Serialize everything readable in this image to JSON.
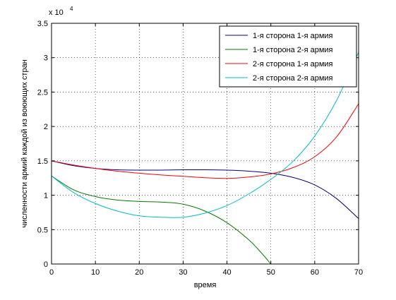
{
  "chart_data": {
    "type": "line",
    "title": "",
    "xlabel": "время",
    "ylabel": "численности армий каждой из воюющих стран",
    "y_multiplier_label": "x 10",
    "y_multiplier_exp": "4",
    "xlim": [
      0,
      70
    ],
    "ylim": [
      0,
      35000
    ],
    "x_ticks": [
      0,
      10,
      20,
      30,
      40,
      50,
      60,
      70
    ],
    "y_ticks": [
      0,
      5000,
      10000,
      15000,
      20000,
      25000,
      30000,
      35000
    ],
    "y_tick_labels": [
      "0",
      "0.5",
      "1",
      "1.5",
      "2",
      "2.5",
      "3",
      "3.5"
    ],
    "grid": true,
    "legend_position": "top-right",
    "series": [
      {
        "name": "1-я сторона 1-я армия",
        "color": "#00007f",
        "x": [
          0,
          5,
          10,
          15,
          20,
          25,
          30,
          35,
          40,
          45,
          50,
          55,
          60,
          65,
          70
        ],
        "y": [
          15000,
          14300,
          13900,
          13700,
          13650,
          13650,
          13700,
          13700,
          13650,
          13500,
          13200,
          12600,
          11500,
          9500,
          6600
        ]
      },
      {
        "name": "1-я сторона 2-я армия",
        "color": "#007f00",
        "x": [
          0,
          5,
          10,
          15,
          20,
          25,
          30,
          35,
          40,
          45,
          48,
          50
        ],
        "y": [
          12800,
          10800,
          9800,
          9300,
          9100,
          9000,
          8700,
          7700,
          6000,
          3500,
          1500,
          0
        ]
      },
      {
        "name": "2-я сторона 1-я армия",
        "color": "#ff0000",
        "x": [
          0,
          5,
          10,
          15,
          20,
          25,
          30,
          35,
          40,
          45,
          50,
          55,
          60,
          65,
          70
        ],
        "y": [
          15000,
          14400,
          13900,
          13500,
          13200,
          12950,
          12750,
          12550,
          12450,
          12650,
          13100,
          14000,
          15600,
          18500,
          23300
        ]
      },
      {
        "name": "2-я сторона 2-я армия",
        "color": "#00bfbf",
        "x": [
          0,
          5,
          10,
          15,
          20,
          25,
          30,
          35,
          40,
          45,
          50,
          55,
          60,
          65,
          70
        ],
        "y": [
          12800,
          10400,
          8800,
          7700,
          7000,
          6800,
          6800,
          7400,
          8500,
          10200,
          12300,
          14900,
          18600,
          23800,
          30800
        ]
      }
    ]
  }
}
